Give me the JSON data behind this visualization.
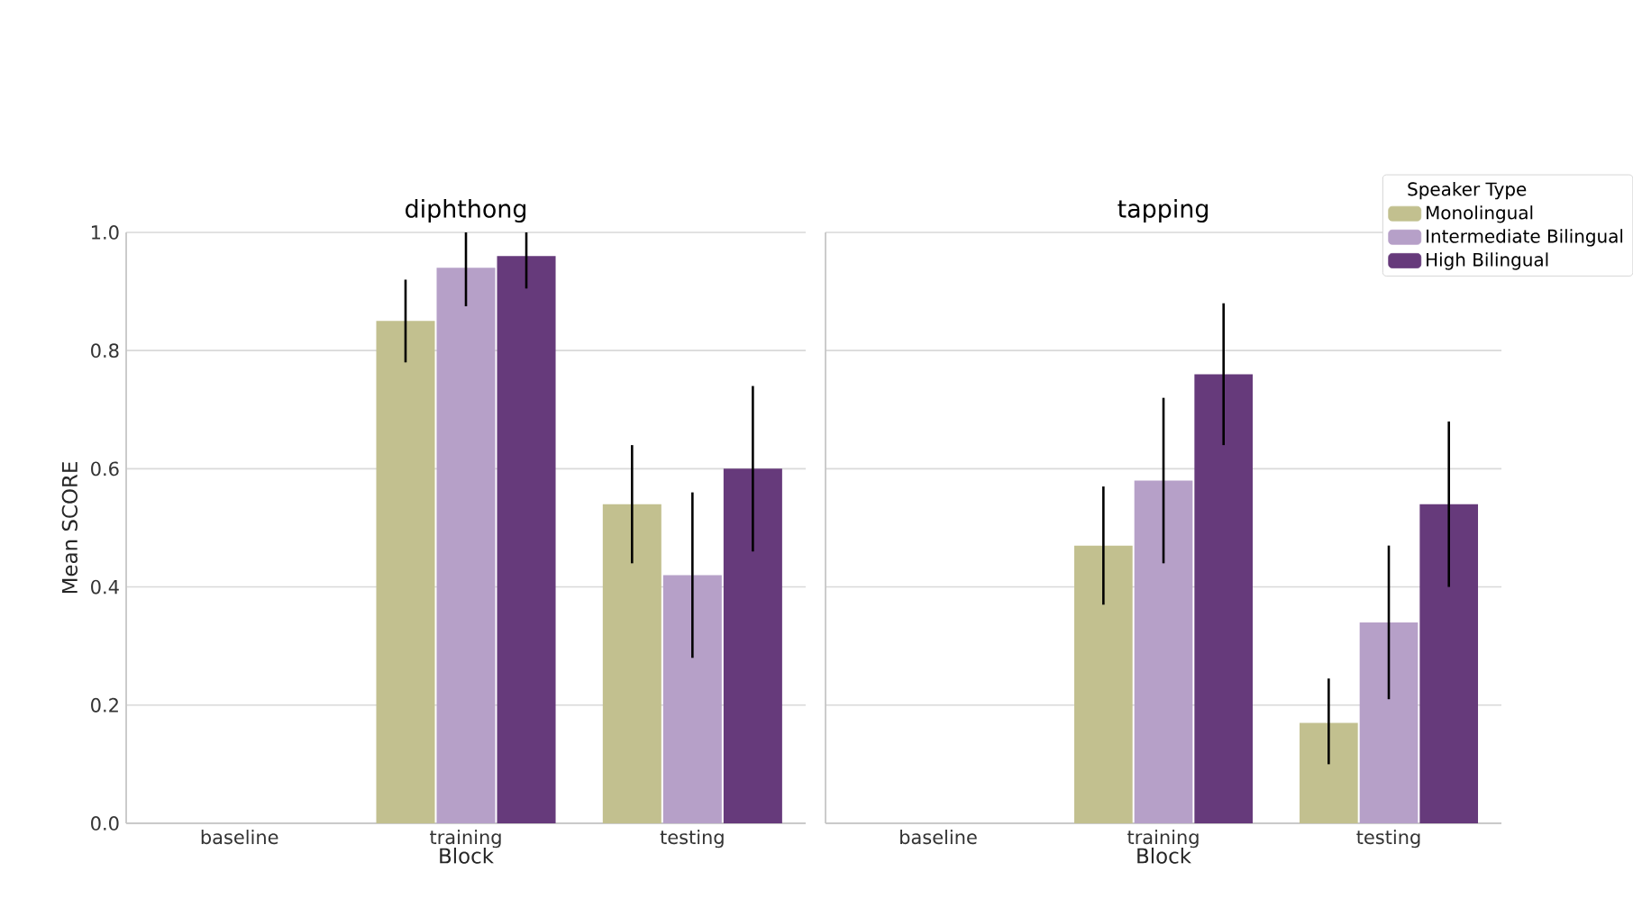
{
  "chart_data": [
    {
      "type": "bar",
      "title": "diphthong",
      "xlabel": "Block",
      "ylabel": "Mean SCORE",
      "categories": [
        "baseline",
        "training",
        "testing"
      ],
      "series": [
        {
          "color": "#c2c08f",
          "values": [
            0,
            0.85,
            0.54
          ],
          "errors": [
            null,
            [
              0.78,
              0.92
            ],
            [
              0.44,
              0.64
            ]
          ]
        },
        {
          "color": "#b6a0c8",
          "values": [
            0,
            0.94,
            0.42
          ],
          "errors": [
            null,
            [
              0.875,
              1.0
            ],
            [
              0.28,
              0.56
            ]
          ]
        },
        {
          "color": "#663a7b",
          "values": [
            0,
            0.96,
            0.6
          ],
          "errors": [
            null,
            [
              0.905,
              1.0
            ],
            [
              0.46,
              0.74
            ]
          ]
        }
      ],
      "ylim": [
        0,
        1
      ],
      "yticks": [
        {
          "value": 0,
          "label": "0.0"
        },
        0.2,
        0.4,
        0.6,
        0.8,
        {
          "value": 1,
          "label": "1.0"
        }
      ],
      "grid": "y"
    },
    {
      "type": "bar",
      "title": "tapping",
      "xlabel": "Block",
      "legend_title": "Speaker Type",
      "categories": [
        "baseline",
        "training",
        "testing"
      ],
      "series": [
        {
          "name": "Monolingual",
          "color": "#c2c08f",
          "values": [
            0,
            0.47,
            0.17
          ],
          "errors": [
            null,
            [
              0.37,
              0.57
            ],
            [
              0.1,
              0.245
            ]
          ]
        },
        {
          "name": "Intermediate Bilingual",
          "color": "#b6a0c8",
          "values": [
            0,
            0.58,
            0.34
          ],
          "errors": [
            null,
            [
              0.44,
              0.72
            ],
            [
              0.21,
              0.47
            ]
          ]
        },
        {
          "name": "High Bilingual",
          "color": "#663a7b",
          "values": [
            0,
            0.76,
            0.54
          ],
          "errors": [
            null,
            [
              0.64,
              0.88
            ],
            [
              0.4,
              0.68
            ]
          ]
        }
      ],
      "ylim": [
        0,
        1
      ],
      "yticks": [
        0,
        0.2,
        0.4,
        0.6,
        0.8,
        1
      ],
      "grid": "y",
      "tick_labels": "x",
      "legend": "top right"
    }
  ]
}
